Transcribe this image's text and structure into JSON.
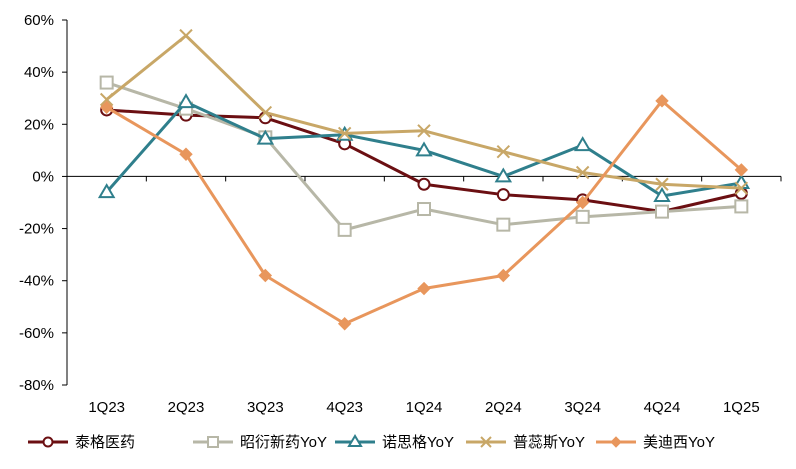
{
  "chart_data": {
    "type": "line",
    "categories": [
      "1Q23",
      "2Q23",
      "3Q23",
      "4Q23",
      "1Q24",
      "2Q24",
      "3Q24",
      "4Q24",
      "1Q25"
    ],
    "y_ticks": [
      "60%",
      "40%",
      "20%",
      "0%",
      "-20%",
      "-40%",
      "-60%",
      "-80%"
    ],
    "ylim": [
      -80,
      60
    ],
    "y_unit": "%",
    "legend_position": "bottom",
    "grid": false,
    "series": [
      {
        "name": "泰格医药",
        "color": "#6b0f12",
        "marker": "circle",
        "values": [
          25.5,
          23.5,
          22.5,
          12.5,
          -3,
          -7,
          -9,
          -13.5,
          -6.5
        ]
      },
      {
        "name": "昭衍新药YoY",
        "color": "#b7b7a7",
        "marker": "square",
        "values": [
          36,
          26,
          15,
          -20.5,
          -12.5,
          -18.5,
          -15.5,
          -13.5,
          -11.5
        ]
      },
      {
        "name": "诺思格YoY",
        "color": "#2f7f8c",
        "marker": "triangle",
        "values": [
          -6,
          28.5,
          14.5,
          16,
          10,
          0,
          12,
          -7.5,
          -2.5
        ]
      },
      {
        "name": "普蕊斯YoY",
        "color": "#c8a767",
        "marker": "x",
        "values": [
          29.5,
          54,
          24.5,
          16.5,
          17.5,
          9.5,
          1.5,
          -3,
          -4.5
        ]
      },
      {
        "name": "美迪西YoY",
        "color": "#e8965c",
        "marker": "diamond",
        "values": [
          26.5,
          8.5,
          -38,
          -56.5,
          -43,
          -38,
          -10,
          29,
          2.5
        ]
      }
    ]
  }
}
